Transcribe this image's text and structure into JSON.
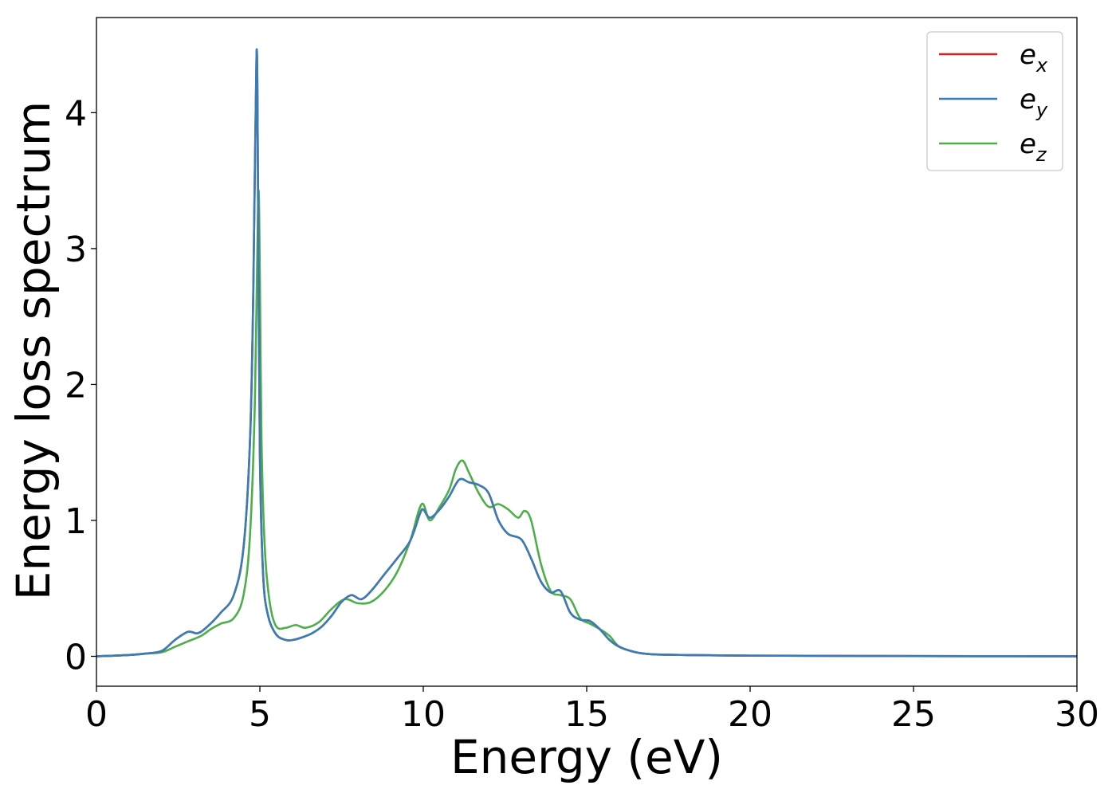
{
  "chart_data": {
    "type": "line",
    "xlabel": "Energy (eV)",
    "ylabel": "Energy loss spectrum",
    "xlim": [
      0,
      30
    ],
    "ylim": [
      -0.22,
      4.7
    ],
    "xticks": [
      0,
      5,
      10,
      15,
      20,
      25,
      30
    ],
    "yticks": [
      0,
      1,
      2,
      3,
      4
    ],
    "xtick_labels": [
      "0",
      "5",
      "10",
      "15",
      "20",
      "25",
      "30"
    ],
    "ytick_labels": [
      "0",
      "1",
      "2",
      "3",
      "4"
    ],
    "grid": false,
    "legend_position": "top-right",
    "colors": {
      "ex": "#e41a1c",
      "ey": "#377eb8",
      "ez": "#4daf4a"
    },
    "series": [
      {
        "name": "e_x",
        "legend_base": "e",
        "legend_sub": "x",
        "color": "#e41a1c",
        "x": [
          0,
          1,
          1.5,
          2,
          2.4,
          2.8,
          3.1,
          3.4,
          3.8,
          4.2,
          4.5,
          4.7,
          4.8,
          4.9,
          4.95,
          5.0,
          5.1,
          5.25,
          5.5,
          5.8,
          6.0,
          6.3,
          6.6,
          6.9,
          7.2,
          7.5,
          7.8,
          8.1,
          8.4,
          8.8,
          9.2,
          9.6,
          9.9,
          10.0,
          10.2,
          10.5,
          10.8,
          11.1,
          11.4,
          11.7,
          12.0,
          12.3,
          12.6,
          13.0,
          13.3,
          13.6,
          13.9,
          14.2,
          14.5,
          14.8,
          15.1,
          15.4,
          15.7,
          16.0,
          16.5,
          17,
          18,
          20,
          25,
          30
        ],
        "y": [
          0.0,
          0.01,
          0.02,
          0.04,
          0.12,
          0.18,
          0.17,
          0.22,
          0.32,
          0.45,
          0.8,
          1.6,
          2.7,
          4.46,
          3.2,
          1.5,
          0.6,
          0.3,
          0.16,
          0.12,
          0.12,
          0.14,
          0.17,
          0.22,
          0.3,
          0.4,
          0.45,
          0.42,
          0.48,
          0.6,
          0.72,
          0.85,
          1.05,
          1.08,
          1.02,
          1.08,
          1.18,
          1.3,
          1.28,
          1.26,
          1.2,
          1.0,
          0.9,
          0.86,
          0.72,
          0.55,
          0.47,
          0.48,
          0.32,
          0.27,
          0.26,
          0.2,
          0.12,
          0.07,
          0.03,
          0.015,
          0.01,
          0.005,
          0.002,
          0.0
        ]
      },
      {
        "name": "e_y",
        "legend_base": "e",
        "legend_sub": "y",
        "color": "#377eb8",
        "x": [
          0,
          1,
          1.5,
          2,
          2.4,
          2.8,
          3.1,
          3.4,
          3.8,
          4.2,
          4.5,
          4.7,
          4.8,
          4.9,
          4.95,
          5.0,
          5.1,
          5.25,
          5.5,
          5.8,
          6.0,
          6.3,
          6.6,
          6.9,
          7.2,
          7.5,
          7.8,
          8.1,
          8.4,
          8.8,
          9.2,
          9.6,
          9.9,
          10.0,
          10.2,
          10.5,
          10.8,
          11.1,
          11.4,
          11.7,
          12.0,
          12.3,
          12.6,
          13.0,
          13.3,
          13.6,
          13.9,
          14.2,
          14.5,
          14.8,
          15.1,
          15.4,
          15.7,
          16.0,
          16.5,
          17,
          18,
          20,
          25,
          30
        ],
        "y": [
          0.0,
          0.01,
          0.02,
          0.04,
          0.12,
          0.18,
          0.17,
          0.22,
          0.32,
          0.45,
          0.8,
          1.6,
          2.7,
          4.46,
          3.2,
          1.5,
          0.6,
          0.3,
          0.16,
          0.12,
          0.12,
          0.14,
          0.17,
          0.22,
          0.3,
          0.4,
          0.45,
          0.42,
          0.48,
          0.6,
          0.72,
          0.85,
          1.05,
          1.08,
          1.02,
          1.08,
          1.18,
          1.3,
          1.28,
          1.26,
          1.2,
          1.0,
          0.9,
          0.86,
          0.72,
          0.55,
          0.47,
          0.48,
          0.32,
          0.27,
          0.26,
          0.2,
          0.12,
          0.07,
          0.03,
          0.015,
          0.01,
          0.005,
          0.002,
          0.0
        ]
      },
      {
        "name": "e_z",
        "legend_base": "e",
        "legend_sub": "z",
        "color": "#4daf4a",
        "x": [
          0,
          1,
          1.5,
          2,
          2.4,
          2.8,
          3.2,
          3.5,
          3.8,
          4.2,
          4.5,
          4.7,
          4.85,
          4.95,
          5.0,
          5.05,
          5.15,
          5.3,
          5.5,
          5.8,
          6.1,
          6.4,
          6.8,
          7.2,
          7.6,
          8.0,
          8.4,
          8.8,
          9.2,
          9.6,
          9.95,
          10.2,
          10.5,
          10.8,
          11.0,
          11.2,
          11.4,
          11.7,
          12.0,
          12.3,
          12.6,
          12.9,
          13.1,
          13.3,
          13.6,
          13.9,
          14.2,
          14.5,
          14.8,
          15.1,
          15.4,
          15.7,
          16.0,
          16.5,
          17,
          18,
          20,
          25,
          30
        ],
        "y": [
          0.0,
          0.01,
          0.02,
          0.03,
          0.07,
          0.11,
          0.15,
          0.2,
          0.24,
          0.28,
          0.45,
          0.9,
          1.9,
          3.4,
          2.8,
          1.6,
          0.8,
          0.4,
          0.22,
          0.21,
          0.23,
          0.21,
          0.25,
          0.35,
          0.42,
          0.39,
          0.4,
          0.48,
          0.62,
          0.85,
          1.12,
          1.0,
          1.1,
          1.23,
          1.38,
          1.44,
          1.35,
          1.2,
          1.1,
          1.12,
          1.08,
          1.02,
          1.07,
          1.0,
          0.68,
          0.48,
          0.45,
          0.42,
          0.28,
          0.24,
          0.2,
          0.15,
          0.07,
          0.03,
          0.015,
          0.01,
          0.005,
          0.002,
          0.0
        ]
      }
    ]
  }
}
